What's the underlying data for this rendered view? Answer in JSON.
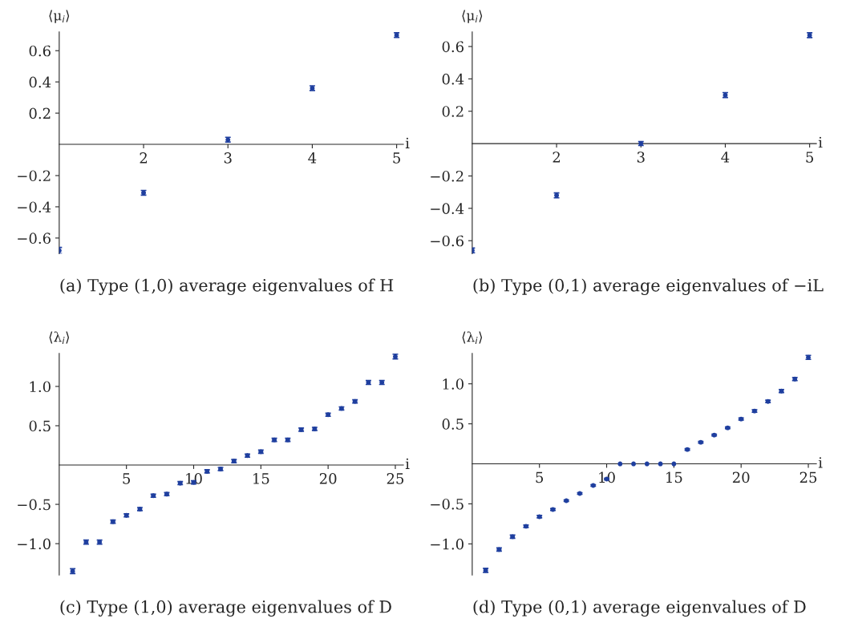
{
  "chart_data": [
    {
      "type": "scatter",
      "title": "(a) Type (1,0) average eigenvalues of H",
      "xlabel": "i",
      "ylabel": "⟨μ$_{i}$⟩",
      "x": [
        1,
        2,
        3,
        4,
        5
      ],
      "xlim": [
        1,
        5.08
      ],
      "ylim": [
        -0.7,
        0.72
      ],
      "xticks": [
        2,
        3,
        4,
        5
      ],
      "yticks": [
        -0.6,
        -0.4,
        -0.2,
        0.2,
        0.4,
        0.6
      ],
      "marker": "circle",
      "grid": false,
      "series": [
        {
          "color": "#1f3f9f",
          "values": [
            -0.68,
            -0.31,
            0.03,
            0.36,
            0.7
          ],
          "errors": [
            0.02,
            0.015,
            0.015,
            0.015,
            0.015
          ]
        }
      ]
    },
    {
      "type": "scatter",
      "title": "(b) Type (0,1) average eigenvalues of −iL",
      "xlabel": "i",
      "ylabel": "⟨μ$_{i}$⟩",
      "x": [
        1,
        2,
        3,
        4,
        5
      ],
      "xlim": [
        1,
        5.08
      ],
      "ylim": [
        -0.68,
        0.69
      ],
      "xticks": [
        2,
        3,
        4,
        5
      ],
      "yticks": [
        -0.6,
        -0.4,
        -0.2,
        0.2,
        0.4,
        0.6
      ],
      "marker": "circle",
      "grid": false,
      "series": [
        {
          "color": "#1f3f9f",
          "values": [
            -0.66,
            -0.32,
            0.0,
            0.3,
            0.67
          ],
          "errors": [
            0.015,
            0.015,
            0.012,
            0.015,
            0.015
          ]
        }
      ]
    },
    {
      "type": "scatter",
      "title": "(c) Type (1,0) average eigenvalues of D",
      "xlabel": "i",
      "ylabel": "⟨λ$_{i}$⟩",
      "x": [
        1,
        2,
        3,
        4,
        5,
        6,
        7,
        8,
        9,
        10,
        11,
        12,
        13,
        14,
        15,
        16,
        17,
        18,
        19,
        20,
        21,
        22,
        23,
        24,
        25
      ],
      "xlim": [
        0,
        25.6
      ],
      "ylim": [
        -1.4,
        1.42
      ],
      "xticks": [
        5,
        10,
        15,
        20,
        25
      ],
      "yticks": [
        {
          "value": -1.0,
          "label": "−1.0"
        },
        {
          "value": -0.5,
          "label": "−0.5"
        },
        0.5,
        {
          "value": 1.0,
          "label": "1.0"
        }
      ],
      "marker": "circle",
      "grid": false,
      "series": [
        {
          "color": "#1f3f9f",
          "values": [
            -1.35,
            -0.98,
            -0.98,
            -0.72,
            -0.64,
            -0.56,
            -0.39,
            -0.37,
            -0.23,
            -0.22,
            -0.08,
            -0.05,
            0.05,
            0.12,
            0.17,
            0.32,
            0.32,
            0.45,
            0.46,
            0.64,
            0.72,
            0.81,
            1.05,
            1.05,
            1.38
          ],
          "errors": [
            0.03,
            0.025,
            0.025,
            0.02,
            0.02,
            0.02,
            0.02,
            0.02,
            0.02,
            0.02,
            0.02,
            0.02,
            0.02,
            0.02,
            0.02,
            0.02,
            0.02,
            0.02,
            0.02,
            0.02,
            0.02,
            0.02,
            0.025,
            0.025,
            0.03
          ]
        }
      ]
    },
    {
      "type": "scatter",
      "title": "(d) Type (0,1) average eigenvalues of D",
      "xlabel": "i",
      "ylabel": "⟨λ$_{i}$⟩",
      "x": [
        1,
        2,
        3,
        4,
        5,
        6,
        7,
        8,
        9,
        10,
        11,
        12,
        13,
        14,
        15,
        16,
        17,
        18,
        19,
        20,
        21,
        22,
        23,
        24,
        25
      ],
      "xlim": [
        0,
        25.6
      ],
      "ylim": [
        -1.39,
        1.38
      ],
      "xticks": [
        5,
        10,
        15,
        20,
        25
      ],
      "yticks": [
        {
          "value": -1.0,
          "label": "−1.0"
        },
        {
          "value": -0.5,
          "label": "−0.5"
        },
        0.5,
        {
          "value": 1.0,
          "label": "1.0"
        }
      ],
      "marker": "circle",
      "grid": false,
      "series": [
        {
          "color": "#1f3f9f",
          "values": [
            -1.33,
            -1.07,
            -0.91,
            -0.78,
            -0.66,
            -0.57,
            -0.46,
            -0.37,
            -0.27,
            -0.19,
            0,
            0,
            0,
            0,
            0,
            0.18,
            0.27,
            0.36,
            0.45,
            0.56,
            0.66,
            0.78,
            0.91,
            1.06,
            1.33
          ],
          "errors": [
            0.025,
            0.02,
            0.02,
            0.015,
            0.015,
            0.012,
            0.01,
            0.01,
            0.01,
            0.01,
            null,
            null,
            null,
            null,
            null,
            0.01,
            0.01,
            0.01,
            0.01,
            0.012,
            0.015,
            0.015,
            0.02,
            0.02,
            0.025
          ]
        }
      ]
    }
  ]
}
